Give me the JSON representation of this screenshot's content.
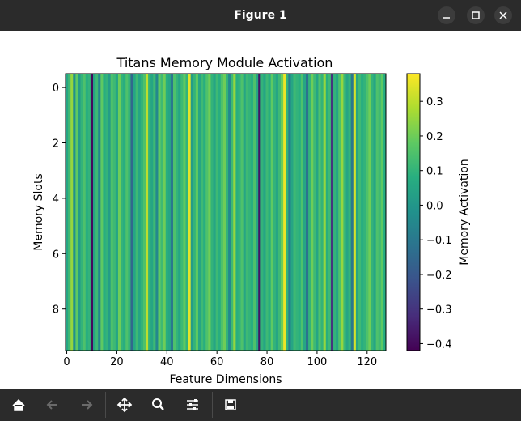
{
  "window": {
    "title": "Figure 1",
    "minimize_icon": "minimize-icon",
    "maximize_icon": "maximize-icon",
    "close_icon": "close-icon"
  },
  "toolbar": {
    "items": [
      "home-icon",
      "back-arrow-icon",
      "forward-arrow-icon",
      "move-icon",
      "zoom-icon",
      "sliders-icon",
      "save-icon"
    ]
  },
  "chart_data": {
    "type": "heatmap",
    "title": "Titans Memory Module Activation",
    "xlabel": "Feature Dimensions",
    "ylabel": "Memory Slots",
    "xlim": [
      -0.5,
      127.5
    ],
    "ylim": [
      9.5,
      -0.5
    ],
    "rows": 10,
    "cols": 128,
    "xticks": [
      0,
      20,
      40,
      60,
      80,
      100,
      120
    ],
    "yticks": [
      0,
      2,
      4,
      6,
      8
    ],
    "colormap": "viridis",
    "colorbar": {
      "label": "Memory Activation",
      "vmin": -0.42,
      "vmax": 0.38,
      "ticks": [
        -0.4,
        -0.3,
        -0.2,
        -0.1,
        0.0,
        0.1,
        0.2,
        0.3
      ],
      "tick_labels": [
        "−0.4",
        "−0.3",
        "−0.2",
        "−0.1",
        "0.0",
        "0.1",
        "0.2",
        "0.3"
      ]
    },
    "column_values": [
      0.05,
      0.12,
      0.25,
      -0.02,
      0.18,
      0.02,
      0.1,
      0.15,
      0.08,
      0.1,
      -0.4,
      0.05,
      0.12,
      -0.05,
      0.18,
      0.08,
      0.1,
      0.02,
      0.15,
      0.12,
      0.05,
      0.2,
      0.1,
      0.08,
      0.15,
      0.1,
      -0.15,
      0.05,
      0.12,
      0.05,
      0.1,
      0.15,
      0.3,
      0.1,
      0.05,
      0.12,
      -0.05,
      0.18,
      0.12,
      0.2,
      0.08,
      0.05,
      -0.1,
      0.15,
      0.1,
      0.05,
      0.12,
      0.18,
      0.1,
      0.35,
      0.02,
      0.1,
      0.18,
      0.05,
      0.12,
      0.08,
      0.15,
      0.2,
      0.1,
      0.05,
      0.12,
      0.08,
      0.15,
      0.2,
      0.1,
      -0.05,
      0.12,
      0.25,
      0.08,
      0.1,
      0.15,
      0.05,
      0.12,
      0.1,
      0.08,
      0.15,
      0.05,
      -0.38,
      0.1,
      0.05,
      0.12,
      0.08,
      0.18,
      0.1,
      0.05,
      0.12,
      0.2,
      0.36,
      0.1,
      -0.08,
      0.05,
      0.12,
      0.1,
      0.08,
      0.15,
      0.05,
      -0.12,
      0.1,
      0.2,
      0.12,
      0.05,
      0.15,
      0.1,
      0.25,
      0.08,
      0.12,
      -0.3,
      0.1,
      0.05,
      0.15,
      0.25,
      0.12,
      0.05,
      0.1,
      -0.1,
      0.33,
      0.05,
      0.12,
      0.08,
      0.1,
      0.15,
      0.2,
      0.1,
      0.05,
      0.15,
      0.12,
      0.18,
      0.08
    ]
  }
}
